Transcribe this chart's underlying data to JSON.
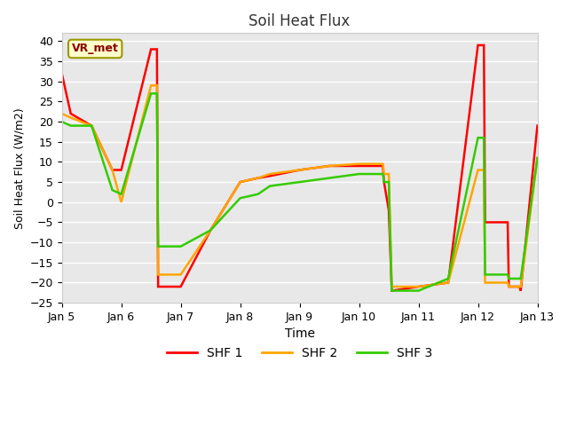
{
  "title": "Soil Heat Flux",
  "xlabel": "Time",
  "ylabel": "Soil Heat Flux (W/m2)",
  "ylim": [
    -25,
    42
  ],
  "yticks": [
    -25,
    -20,
    -15,
    -10,
    -5,
    0,
    5,
    10,
    15,
    20,
    25,
    30,
    35,
    40
  ],
  "annotation_text": "VR_met",
  "background_color": "#e8e8e8",
  "plot_bg_color": "#f0f0f0",
  "line_colors": [
    "#ff0000",
    "#ffa500",
    "#33cc00"
  ],
  "line_labels": [
    "SHF 1",
    "SHF 2",
    "SHF 3"
  ],
  "x_days": [
    5.0,
    5.15,
    5.5,
    5.85,
    6.0,
    6.5,
    6.6,
    6.62,
    6.75,
    6.77,
    7.0,
    7.5,
    8.0,
    8.3,
    8.5,
    9.0,
    9.5,
    10.0,
    10.4,
    10.42,
    10.5,
    10.55,
    11.0,
    11.5,
    12.0,
    12.1,
    12.12,
    12.5,
    12.52,
    12.7,
    12.72,
    13.0
  ],
  "shf1": [
    32,
    22,
    19,
    8,
    8,
    38,
    38,
    -21,
    -21,
    -21,
    -21,
    -7,
    5,
    6,
    6.5,
    8,
    9,
    9,
    9,
    5,
    -2,
    -22,
    -21,
    -20,
    39,
    39,
    -5,
    -5,
    -21,
    -21,
    -22,
    19
  ],
  "shf2": [
    22,
    21,
    19,
    8,
    0,
    29,
    29,
    -18,
    -18,
    -18,
    -18,
    -7,
    5,
    6,
    7,
    8,
    9,
    9.5,
    9.5,
    7,
    7,
    -21,
    -21,
    -20,
    8,
    8,
    -20,
    -20,
    -21,
    -21,
    -21,
    11
  ],
  "shf3": [
    20,
    19,
    19,
    3,
    2,
    27,
    27,
    -11,
    -11,
    -11,
    -11,
    -7,
    1,
    2,
    4,
    5,
    6,
    7,
    7,
    5,
    5,
    -22,
    -22,
    -19,
    16,
    16,
    -18,
    -18,
    -19,
    -19,
    -19,
    11
  ]
}
